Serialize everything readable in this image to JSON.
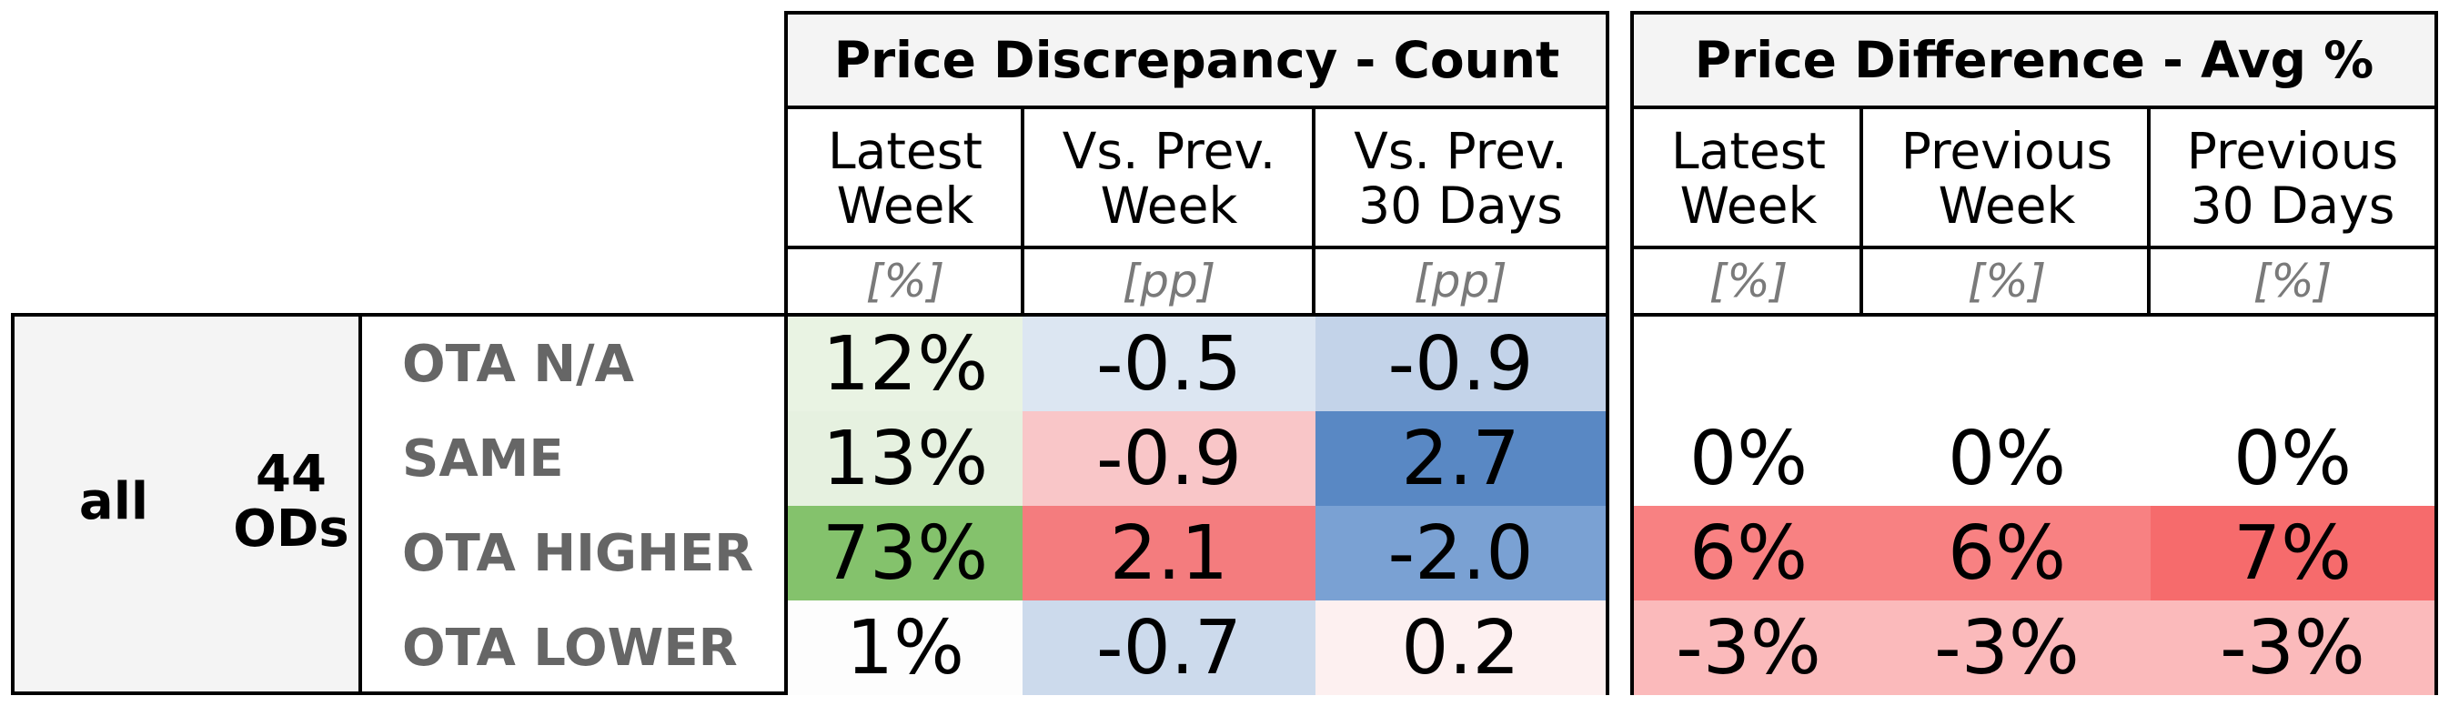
{
  "chart_data": {
    "type": "table",
    "group": {
      "name": "all",
      "count_label": "44\nODs"
    },
    "panels": [
      {
        "title": "Price Discrepancy - Count",
        "columns": [
          {
            "label": "Latest\nWeek",
            "unit": "[%]"
          },
          {
            "label": "Vs. Prev.\nWeek",
            "unit": "[pp]"
          },
          {
            "label": "Vs. Prev.\n30 Days",
            "unit": "[pp]"
          }
        ]
      },
      {
        "title": "Price Difference - Avg %",
        "columns": [
          {
            "label": "Latest\nWeek",
            "unit": "[%]"
          },
          {
            "label": "Previous\nWeek",
            "unit": "[%]"
          },
          {
            "label": "Previous\n30 Days",
            "unit": "[%]"
          }
        ]
      }
    ],
    "rows": [
      {
        "label": "OTA N/A",
        "values": [
          "12%",
          "-0.5",
          "-0.9",
          "",
          "",
          ""
        ],
        "colors": [
          "#e9f3e3",
          "#dce6f2",
          "#c3d3e9",
          "#ffffff",
          "#ffffff",
          "#ffffff"
        ]
      },
      {
        "label": "SAME",
        "values": [
          "13%",
          "-0.9",
          "2.7",
          "0%",
          "0%",
          "0%"
        ],
        "colors": [
          "#e6f1e0",
          "#f9c6c8",
          "#5988c4",
          "#ffffff",
          "#ffffff",
          "#ffffff"
        ]
      },
      {
        "label": "OTA HIGHER",
        "values": [
          "73%",
          "2.1",
          "-2.0",
          "6%",
          "6%",
          "7%"
        ],
        "colors": [
          "#84c26c",
          "#f47c7e",
          "#7aa1d3",
          "#f88182",
          "#f88182",
          "#f66b6c"
        ]
      },
      {
        "label": "OTA LOWER",
        "values": [
          "1%",
          "-0.7",
          "0.2",
          "-3%",
          "-3%",
          "-3%"
        ],
        "colors": [
          "#fdfdfd",
          "#ccdaec",
          "#fdf0f0",
          "#fbbabb",
          "#fbbabb",
          "#fbbabb"
        ]
      }
    ]
  }
}
